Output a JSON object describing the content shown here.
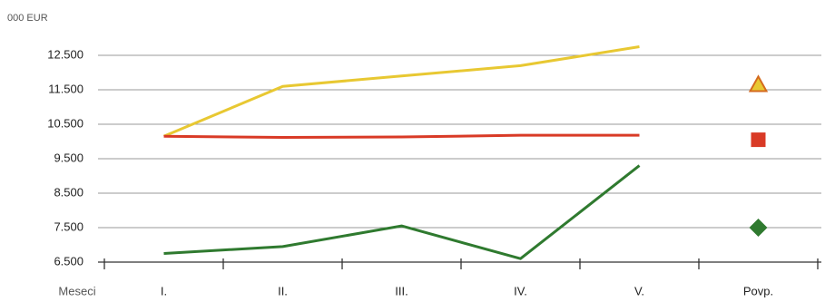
{
  "chart_data": {
    "type": "line",
    "y_unit": "000 EUR",
    "x_label": "Meseci",
    "categories": [
      "I.",
      "II.",
      "III.",
      "IV.",
      "V.",
      "Povp."
    ],
    "series": [
      {
        "color": "#e8c832",
        "marker": "triangle",
        "values": [
          10150,
          11600,
          11900,
          12200,
          12750,
          11650
        ]
      },
      {
        "color": "#d93a26",
        "marker": "square",
        "values": [
          10150,
          10120,
          10130,
          10180,
          10180,
          10050
        ]
      },
      {
        "color": "#2f7a2f",
        "marker": "diamond",
        "values": [
          6750,
          6950,
          7550,
          6600,
          9300,
          7500
        ]
      }
    ],
    "ylim": [
      6500,
      13000
    ],
    "yticks": [
      {
        "value": 6500,
        "label": "6.500"
      },
      {
        "value": 7500,
        "label": "7.500"
      },
      {
        "value": 8500,
        "label": "8.500"
      },
      {
        "value": 9500,
        "label": "9.500"
      },
      {
        "value": 10500,
        "label": "10.500"
      },
      {
        "value": 11500,
        "label": "11.500"
      },
      {
        "value": 12500,
        "label": "12.500"
      }
    ],
    "grid": true
  }
}
